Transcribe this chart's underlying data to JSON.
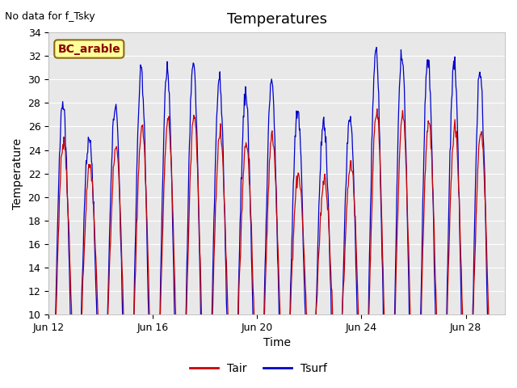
{
  "title": "Temperatures",
  "top_left_note": "No data for f_Tsky",
  "box_label": "BC_arable",
  "xlabel": "Time",
  "ylabel": "Temperature",
  "xlim": [
    0,
    17.5
  ],
  "ylim": [
    10,
    34
  ],
  "yticks": [
    10,
    12,
    14,
    16,
    18,
    20,
    22,
    24,
    26,
    28,
    30,
    32,
    34
  ],
  "xtick_positions": [
    0,
    4,
    8,
    12,
    16
  ],
  "xtick_labels": [
    "Jun 12",
    "Jun 16",
    "Jun 20",
    "Jun 24",
    "Jun 28"
  ],
  "tair_color": "#cc0000",
  "tsurf_color": "#0000cc",
  "bg_color": "#e8e8e8",
  "legend_tair": "Tair",
  "legend_tsurf": "Tsurf",
  "n_days": 17,
  "pts_per_day": 48,
  "tair_base": 13.5,
  "amp_tair": [
    11.5,
    9.0,
    10.5,
    12.5,
    13.0,
    13.5,
    12.0,
    11.0,
    12.0,
    8.5,
    8.0,
    9.0,
    14.0,
    13.5,
    13.0,
    12.5,
    12.0
  ],
  "amp_tsurf_extra": [
    3.0,
    2.5,
    3.5,
    4.5,
    4.0,
    5.0,
    4.5,
    4.0,
    4.5,
    5.5,
    5.0,
    4.0,
    5.0,
    5.0,
    5.5,
    5.5,
    5.0
  ]
}
